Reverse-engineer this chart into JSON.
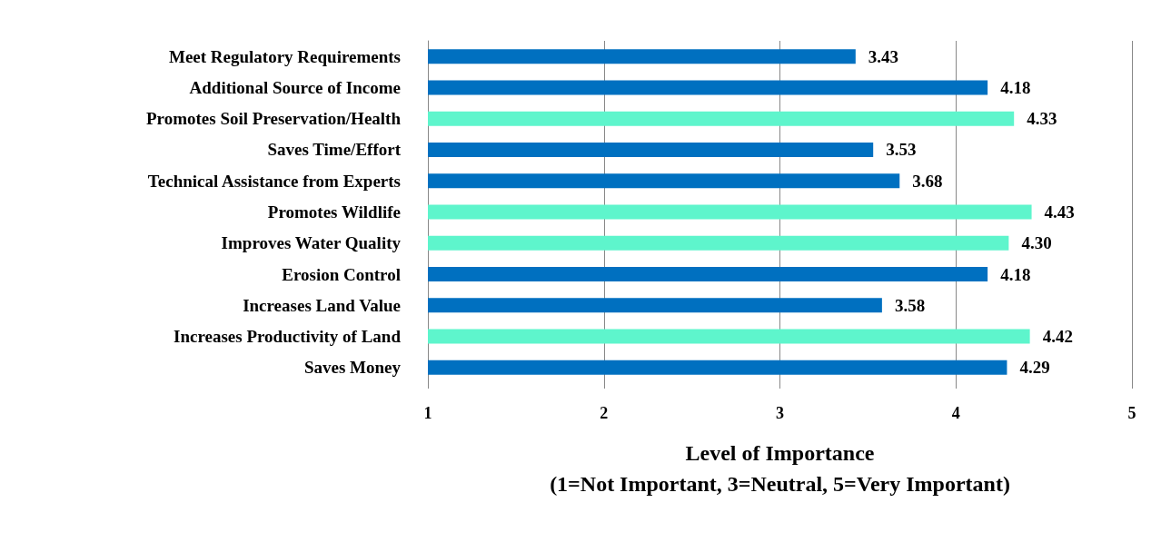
{
  "chart_data": {
    "type": "bar",
    "orientation": "horizontal",
    "xlabel": "Level of Importance\n(1=Not Important, 3=Neutral, 5=Very Important)",
    "categories": [
      "Meet Regulatory Requirements",
      "Additional Source of Income",
      "Promotes Soil Preservation/Health",
      "Saves Time/Effort",
      "Technical Assistance from Experts",
      "Promotes Wildlife",
      "Improves Water Quality",
      "Erosion Control",
      "Increases Land Value",
      "Increases Productivity of Land",
      "Saves Money"
    ],
    "values": [
      3.43,
      4.18,
      4.33,
      3.53,
      3.68,
      4.43,
      4.3,
      4.18,
      3.58,
      4.42,
      4.29
    ],
    "value_labels": [
      "3.43",
      "4.18",
      "4.33",
      "3.53",
      "3.68",
      "4.43",
      "4.30",
      "4.18",
      "3.58",
      "4.42",
      "4.29"
    ],
    "colors": [
      "#0070c0",
      "#0070c0",
      "#5ef5cc",
      "#0070c0",
      "#0070c0",
      "#5ef5cc",
      "#5ef5cc",
      "#0070c0",
      "#0070c0",
      "#5ef5cc",
      "#0070c0"
    ],
    "xlim": [
      1,
      5
    ],
    "xticks": [
      1,
      2,
      3,
      4,
      5
    ],
    "grid": "x"
  }
}
